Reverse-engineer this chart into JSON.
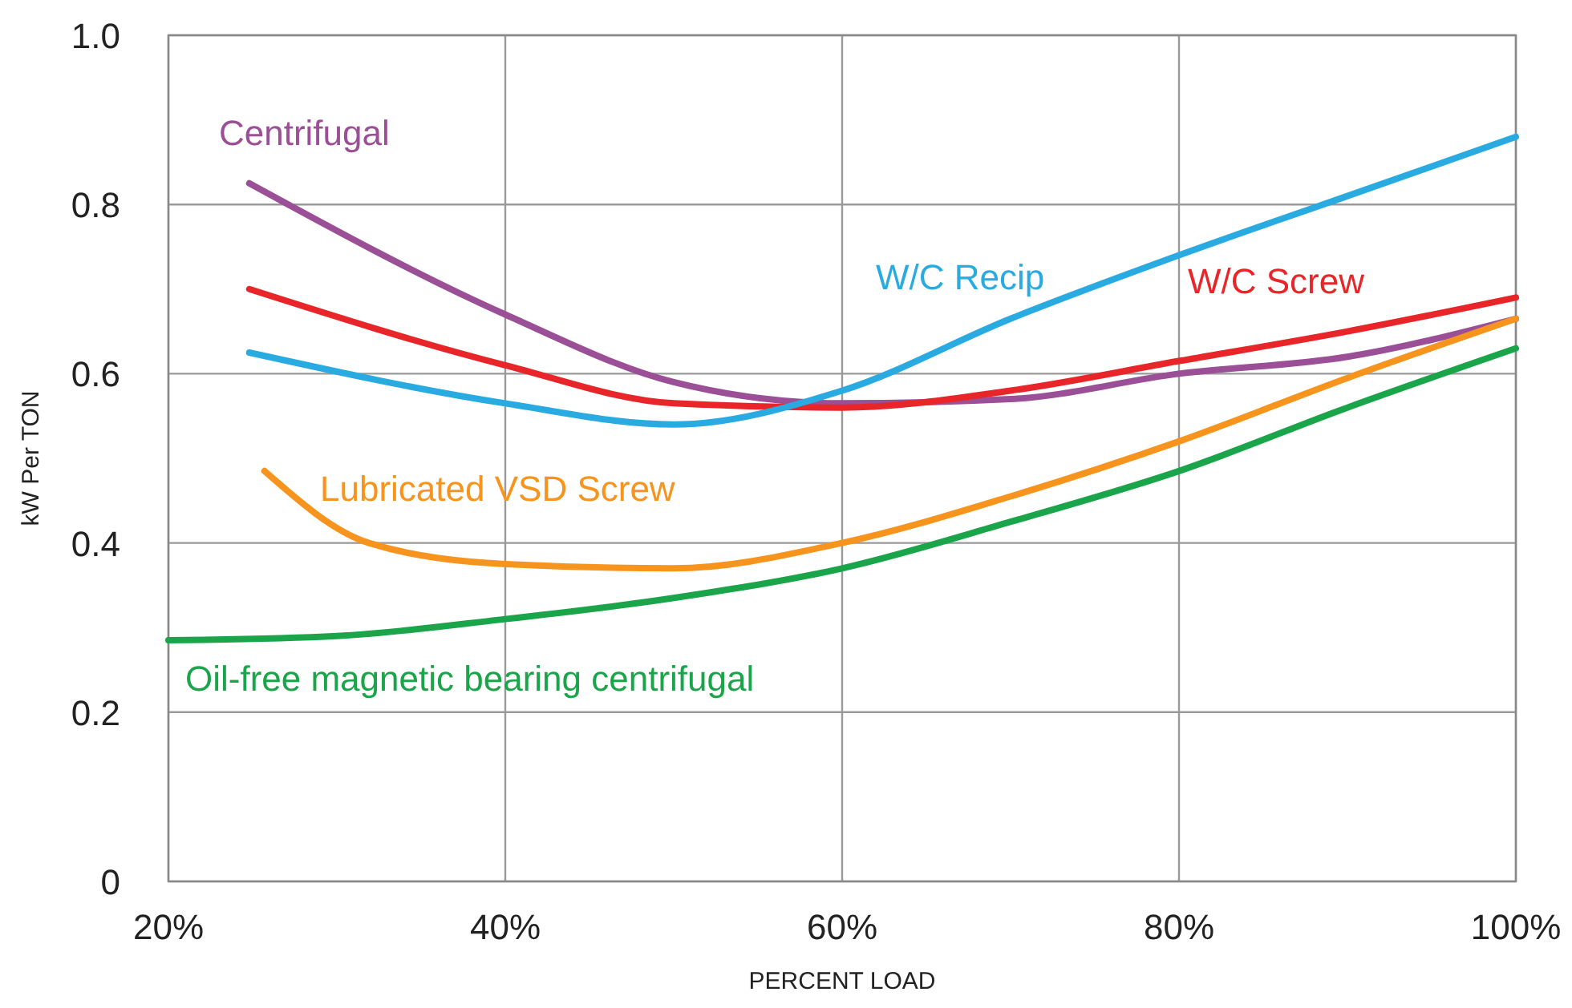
{
  "chart_data": {
    "type": "line",
    "xlabel": "PERCENT LOAD",
    "ylabel": "kW Per TON",
    "grid": true,
    "line_style": "solid",
    "marker": "none",
    "xlim": [
      20,
      100
    ],
    "xticks": [
      {
        "value": 20,
        "label": "20%"
      },
      {
        "value": 40,
        "label": "40%"
      },
      {
        "value": 60,
        "label": "60%"
      },
      {
        "value": 80,
        "label": "80%"
      },
      {
        "value": 100,
        "label": "100%"
      }
    ],
    "ylim": [
      0,
      1
    ],
    "yticks": [
      0,
      0.2,
      0.4,
      0.6,
      0.8,
      {
        "value": 1,
        "label": "1.0"
      }
    ],
    "series": [
      {
        "name": "Centrifugal",
        "color": "#9b4f96",
        "x": [
          24.8,
          40,
          50,
          60,
          70,
          80,
          90,
          100
        ],
        "values": [
          0.825,
          0.67,
          0.59,
          0.565,
          0.57,
          0.6,
          0.62,
          0.665
        ]
      },
      {
        "name": "W/C Screw",
        "color": "#e8262a",
        "x": [
          24.8,
          40,
          50,
          60,
          70,
          80,
          90,
          100
        ],
        "values": [
          0.7,
          0.61,
          0.565,
          0.56,
          0.58,
          0.615,
          0.65,
          0.69
        ]
      },
      {
        "name": "W/C Recip",
        "color": "#29abe2",
        "x": [
          24.8,
          40,
          50,
          60,
          70,
          80,
          90,
          100
        ],
        "values": [
          0.625,
          0.565,
          0.54,
          0.58,
          0.665,
          0.74,
          0.81,
          0.88
        ]
      },
      {
        "name": "Lubricated VSD Screw",
        "color": "#f7941d",
        "x": [
          25.7,
          31.9,
          40,
          50,
          60,
          70,
          80,
          90,
          100
        ],
        "values": [
          0.485,
          0.4,
          0.375,
          0.37,
          0.4,
          0.455,
          0.52,
          0.595,
          0.665
        ]
      },
      {
        "name": "Oil-free magnetic bearing centrifugal",
        "color": "#1aa54a",
        "x": [
          20,
          30,
          40,
          50,
          60,
          70,
          80,
          90,
          100
        ],
        "values": [
          0.285,
          0.29,
          0.31,
          0.335,
          0.37,
          0.425,
          0.485,
          0.56,
          0.63
        ]
      }
    ]
  }
}
